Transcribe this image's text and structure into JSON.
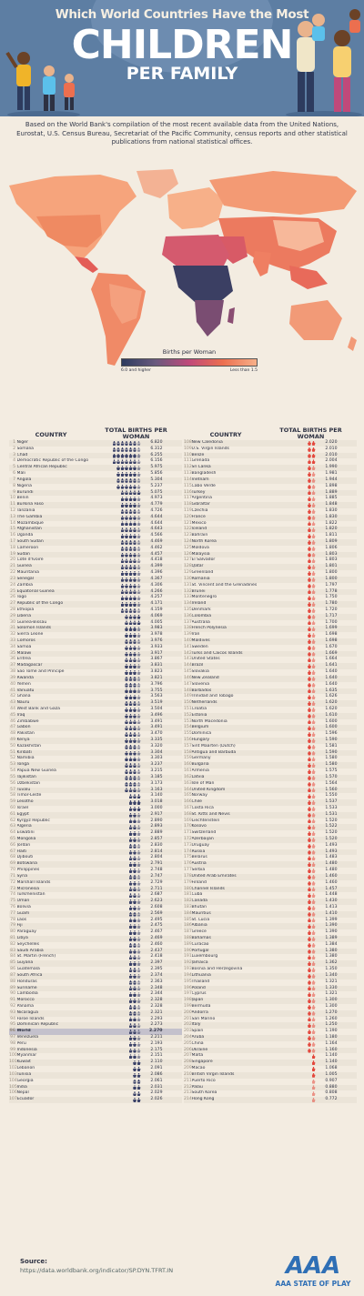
{
  "header": {
    "title_top": "Which World Countries Have the Most",
    "title_main": "CHILDREN",
    "title_sub": "PER FAMILY"
  },
  "description": "Based on the World Bank's compilation of the most recent available data from the United Nations, Eurostat, U.S. Census Bureau, Secretariat of the Pacific Community, census reports and other statistical publications from national statistical offices.",
  "legend": {
    "title": "Births per Woman",
    "high": "6.0 and higher",
    "low": "Less than 1.5"
  },
  "colors": {
    "header": "#5d7ea3",
    "background": "#f3ece1",
    "high": "#2d3b5e",
    "mid": "#c0497a",
    "low": "#f7b089",
    "icon_dark": "#3b4268",
    "icon_red": "#e3483d"
  },
  "table": {
    "col_country": "COUNTRY",
    "col_births": "TOTAL BIRTHS PER WOMAN",
    "left": [
      [
        "1",
        "Niger",
        "6.820"
      ],
      [
        "2",
        "Somalia",
        "6.312"
      ],
      [
        "3",
        "Chad",
        "6.255"
      ],
      [
        "4",
        "Democratic Republic of the Congo",
        "6.156"
      ],
      [
        "5",
        "Central African Republic",
        "5.975"
      ],
      [
        "6",
        "Mali",
        "5.856"
      ],
      [
        "7",
        "Angola",
        "5.304"
      ],
      [
        "8",
        "Nigeria",
        "5.237"
      ],
      [
        "9",
        "Burundi",
        "5.075"
      ],
      [
        "10",
        "Benin",
        "4.973"
      ],
      [
        "11",
        "Burkina Faso",
        "4.779"
      ],
      [
        "12",
        "Tanzania",
        "4.726"
      ],
      [
        "13",
        "The Gambia",
        "4.644"
      ],
      [
        "14",
        "Mozambique",
        "4.644"
      ],
      [
        "15",
        "Afghanistan",
        "4.643"
      ],
      [
        "16",
        "Uganda",
        "4.566"
      ],
      [
        "17",
        "South Sudan",
        "4.469"
      ],
      [
        "18",
        "Cameroon",
        "4.462"
      ],
      [
        "19",
        "Sudan",
        "4.457"
      ],
      [
        "20",
        "Cote d'Ivoire",
        "4.418"
      ],
      [
        "21",
        "Guinea",
        "4.399"
      ],
      [
        "22",
        "Mauritania",
        "4.396"
      ],
      [
        "23",
        "Senegal",
        "4.367"
      ],
      [
        "24",
        "Zambia",
        "4.306"
      ],
      [
        "25",
        "Equatorial Guinea",
        "4.266"
      ],
      [
        "26",
        "Togo",
        "4.257"
      ],
      [
        "27",
        "Republic of the Congo",
        "4.171"
      ],
      [
        "28",
        "Ethiopia",
        "4.159"
      ],
      [
        "29",
        "Liberia",
        "4.069"
      ],
      [
        "30",
        "Guinea-Bissau",
        "4.005"
      ],
      [
        "31",
        "Solomon Islands",
        "3.983"
      ],
      [
        "32",
        "Sierra Leone",
        "3.978"
      ],
      [
        "33",
        "Comoros",
        "3.976"
      ],
      [
        "34",
        "Samoa",
        "3.933"
      ],
      [
        "35",
        "Malawi",
        "3.917"
      ],
      [
        "36",
        "Eritrea",
        "3.867"
      ],
      [
        "37",
        "Madagascar",
        "3.831"
      ],
      [
        "38",
        "Sao Tome and Principe",
        "3.823"
      ],
      [
        "39",
        "Rwanda",
        "3.821"
      ],
      [
        "40",
        "Yemen",
        "3.796"
      ],
      [
        "41",
        "Vanuatu",
        "3.755"
      ],
      [
        "42",
        "Ghana",
        "3.563"
      ],
      [
        "43",
        "Nauru",
        "3.519"
      ],
      [
        "44",
        "West Bank and Gaza",
        "3.504"
      ],
      [
        "45",
        "Iraq",
        "3.496"
      ],
      [
        "46",
        "Zimbabwe",
        "3.491"
      ],
      [
        "47",
        "Gabon",
        "3.491"
      ],
      [
        "48",
        "Pakistan",
        "3.470"
      ],
      [
        "49",
        "Kenya",
        "3.335"
      ],
      [
        "50",
        "Kazakhstan",
        "3.320"
      ],
      [
        "51",
        "Kiribati",
        "3.304"
      ],
      [
        "52",
        "Namibia",
        "3.303"
      ],
      [
        "53",
        "Tonga",
        "3.237"
      ],
      [
        "54",
        "Papua New Guinea",
        "3.215"
      ],
      [
        "55",
        "Tajikistan",
        "3.185"
      ],
      [
        "56",
        "Uzbekistan",
        "3.173"
      ],
      [
        "57",
        "Tuvalu",
        "3.163"
      ],
      [
        "58",
        "Timor-Leste",
        "3.140"
      ],
      [
        "59",
        "Lesotho",
        "3.018"
      ],
      [
        "60",
        "Israel",
        "3.000"
      ],
      [
        "61",
        "Egypt",
        "2.917"
      ],
      [
        "62",
        "Kyrgyz Republic",
        "2.890"
      ],
      [
        "63",
        "Algeria",
        "2.893"
      ],
      [
        "64",
        "Eswatini",
        "2.889"
      ],
      [
        "65",
        "Mongolia",
        "2.857"
      ],
      [
        "66",
        "Jordan",
        "2.830"
      ],
      [
        "67",
        "Haiti",
        "2.814"
      ],
      [
        "68",
        "Djibouti",
        "2.804"
      ],
      [
        "69",
        "Botswana",
        "2.791"
      ],
      [
        "70",
        "Philippines",
        "2.748"
      ],
      [
        "71",
        "Syria",
        "2.747"
      ],
      [
        "72",
        "Marshall Islands",
        "2.729"
      ],
      [
        "73",
        "Micronesia",
        "2.711"
      ],
      [
        "74",
        "Turkmenistan",
        "2.687"
      ],
      [
        "75",
        "Oman",
        "2.623"
      ],
      [
        "76",
        "Bolivia",
        "2.608"
      ],
      [
        "77",
        "Guam",
        "2.569"
      ],
      [
        "78",
        "Laos",
        "2.495"
      ],
      [
        "79",
        "Fiji",
        "2.475"
      ],
      [
        "80",
        "Paraguay",
        "2.467"
      ],
      [
        "81",
        "Libya",
        "2.469"
      ],
      [
        "82",
        "Seychelles",
        "2.460"
      ],
      [
        "83",
        "Saudi Arabia",
        "2.437"
      ],
      [
        "84",
        "St. Martin (French)",
        "2.418"
      ],
      [
        "85",
        "Guyana",
        "2.397"
      ],
      [
        "86",
        "Guatemala",
        "2.395"
      ],
      [
        "87",
        "South Africa",
        "2.374"
      ],
      [
        "88",
        "Honduras",
        "2.363"
      ],
      [
        "89",
        "Suriname",
        "2.348"
      ],
      [
        "90",
        "Cambodia",
        "2.344"
      ],
      [
        "91",
        "Morocco",
        "2.328"
      ],
      [
        "92",
        "Panama",
        "2.328"
      ],
      [
        "93",
        "Nicaragua",
        "2.321"
      ],
      [
        "94",
        "Faroe Islands",
        "2.293"
      ],
      [
        "95",
        "Dominican Republic",
        "2.273"
      ],
      [
        "96",
        "World",
        "2.270"
      ],
      [
        "97",
        "Venezuela",
        "2.211"
      ],
      [
        "98",
        "Peru",
        "2.193"
      ],
      [
        "99",
        "Indonesia",
        "2.175"
      ],
      [
        "100",
        "Myanmar",
        "2.151"
      ],
      [
        "101",
        "Kuwait",
        "2.110"
      ],
      [
        "102",
        "Lebanon",
        "2.091"
      ],
      [
        "103",
        "Tunisia",
        "2.086"
      ],
      [
        "104",
        "Georgia",
        "2.061"
      ],
      [
        "105",
        "India",
        "2.031"
      ],
      [
        "106",
        "Nepal",
        "2.029"
      ],
      [
        "107",
        "Ecuador",
        "2.026"
      ]
    ],
    "right": [
      [
        "108",
        "New Caledonia",
        "2.020"
      ],
      [
        "109",
        "U.S. Virgin Islands",
        "2.010"
      ],
      [
        "110",
        "Belize",
        "2.010"
      ],
      [
        "111",
        "Grenada",
        "2.004"
      ],
      [
        "112",
        "Sri Lanka",
        "1.990"
      ],
      [
        "113",
        "Bangladesh",
        "1.981"
      ],
      [
        "114",
        "Vietnam",
        "1.944"
      ],
      [
        "115",
        "Cabo Verde",
        "1.898"
      ],
      [
        "116",
        "Turkey",
        "1.889"
      ],
      [
        "117",
        "Argentina",
        "1.885"
      ],
      [
        "118",
        "Gibraltar",
        "1.848"
      ],
      [
        "119",
        "Czechia",
        "1.830"
      ],
      [
        "120",
        "France",
        "1.830"
      ],
      [
        "121",
        "Mexico",
        "1.822"
      ],
      [
        "122",
        "Iceland",
        "1.820"
      ],
      [
        "123",
        "Bahrain",
        "1.811"
      ],
      [
        "124",
        "North Korea",
        "1.809"
      ],
      [
        "125",
        "Moldova",
        "1.806"
      ],
      [
        "126",
        "Malaysia",
        "1.803"
      ],
      [
        "127",
        "El Salvador",
        "1.803"
      ],
      [
        "128",
        "Qatar",
        "1.801"
      ],
      [
        "129",
        "Greenland",
        "1.800"
      ],
      [
        "130",
        "Romania",
        "1.800"
      ],
      [
        "131",
        "St. Vincent and the Grenadines",
        "1.797"
      ],
      [
        "132",
        "Brunei",
        "1.778"
      ],
      [
        "133",
        "Montenegro",
        "1.750"
      ],
      [
        "134",
        "Ireland",
        "1.780"
      ],
      [
        "135",
        "Denmark",
        "1.720"
      ],
      [
        "136",
        "Colombia",
        "1.717"
      ],
      [
        "137",
        "Australia",
        "1.700"
      ],
      [
        "138",
        "French Polynesia",
        "1.699"
      ],
      [
        "139",
        "Iran",
        "1.698"
      ],
      [
        "140",
        "Maldives",
        "1.698"
      ],
      [
        "141",
        "Sweden",
        "1.670"
      ],
      [
        "142",
        "Turks and Caicos Islands",
        "1.669"
      ],
      [
        "143",
        "United States",
        "1.664"
      ],
      [
        "144",
        "Brazil",
        "1.641"
      ],
      [
        "145",
        "Slovakia",
        "1.640"
      ],
      [
        "146",
        "New Zealand",
        "1.640"
      ],
      [
        "147",
        "Slovenia",
        "1.640"
      ],
      [
        "148",
        "Barbados",
        "1.635"
      ],
      [
        "149",
        "Trinidad and Tobago",
        "1.626"
      ],
      [
        "150",
        "Netherlands",
        "1.620"
      ],
      [
        "151",
        "Croatia",
        "1.620"
      ],
      [
        "152",
        "Estonia",
        "1.610"
      ],
      [
        "153",
        "North Macedonia",
        "1.600"
      ],
      [
        "154",
        "Belgium",
        "1.600"
      ],
      [
        "155",
        "Dominica",
        "1.596"
      ],
      [
        "156",
        "Hungary",
        "1.590"
      ],
      [
        "157",
        "Sint Maarten (Dutch)",
        "1.581"
      ],
      [
        "158",
        "Antigua and Barbuda",
        "1.590"
      ],
      [
        "159",
        "Germany",
        "1.580"
      ],
      [
        "160",
        "Bulgaria",
        "1.580"
      ],
      [
        "161",
        "Armenia",
        "1.575"
      ],
      [
        "162",
        "Latvia",
        "1.570"
      ],
      [
        "163",
        "Isle of Man",
        "1.564"
      ],
      [
        "164",
        "United Kingdom",
        "1.560"
      ],
      [
        "165",
        "Norway",
        "1.550"
      ],
      [
        "166",
        "Chile",
        "1.537"
      ],
      [
        "167",
        "Costa Rica",
        "1.533"
      ],
      [
        "168",
        "St. Kitts and Nevis",
        "1.531"
      ],
      [
        "169",
        "Liechtenstein",
        "1.520"
      ],
      [
        "170",
        "Kosovo",
        "1.522"
      ],
      [
        "171",
        "Switzerland",
        "1.520"
      ],
      [
        "172",
        "Azerbaijan",
        "1.520"
      ],
      [
        "173",
        "Uruguay",
        "1.493"
      ],
      [
        "174",
        "Russia",
        "1.493"
      ],
      [
        "175",
        "Belarus",
        "1.483"
      ],
      [
        "176",
        "Austria",
        "1.480"
      ],
      [
        "177",
        "Serbia",
        "1.480"
      ],
      [
        "178",
        "United Arab Emirates",
        "1.460"
      ],
      [
        "179",
        "Finland",
        "1.460"
      ],
      [
        "180",
        "Channel Islands",
        "1.457"
      ],
      [
        "181",
        "Cuba",
        "1.448"
      ],
      [
        "182",
        "Canada",
        "1.430"
      ],
      [
        "183",
        "Bhutan",
        "1.413"
      ],
      [
        "184",
        "Mauritius",
        "1.410"
      ],
      [
        "185",
        "St. Lucia",
        "1.399"
      ],
      [
        "186",
        "Albania",
        "1.390"
      ],
      [
        "187",
        "Greece",
        "1.390"
      ],
      [
        "188",
        "Bahamas",
        "1.389"
      ],
      [
        "189",
        "Curacao",
        "1.384"
      ],
      [
        "190",
        "Portugal",
        "1.380"
      ],
      [
        "191",
        "Luxembourg",
        "1.380"
      ],
      [
        "192",
        "Jamaica",
        "1.362"
      ],
      [
        "193",
        "Bosnia and Herzegovina",
        "1.350"
      ],
      [
        "194",
        "Lithuania",
        "1.340"
      ],
      [
        "195",
        "Thailand",
        "1.321"
      ],
      [
        "196",
        "Poland",
        "1.330"
      ],
      [
        "197",
        "Cyprus",
        "1.321"
      ],
      [
        "198",
        "Japan",
        "1.300"
      ],
      [
        "199",
        "Bermuda",
        "1.300"
      ],
      [
        "200",
        "Andorra",
        "1.270"
      ],
      [
        "201",
        "San Marino",
        "1.260"
      ],
      [
        "202",
        "Italy",
        "1.250"
      ],
      [
        "203",
        "Spain",
        "1.190"
      ],
      [
        "204",
        "Aruba",
        "1.180"
      ],
      [
        "205",
        "China",
        "1.164"
      ],
      [
        "206",
        "Ukraine",
        "1.160"
      ],
      [
        "207",
        "Malta",
        "1.140"
      ],
      [
        "208",
        "Singapore",
        "1.140"
      ],
      [
        "209",
        "Macao",
        "1.068"
      ],
      [
        "210",
        "British Virgin Islands",
        "1.005"
      ],
      [
        "211",
        "Puerto Rico",
        "0.907"
      ],
      [
        "212",
        "Palau",
        "0.880"
      ],
      [
        "213",
        "South Korea",
        "0.808"
      ],
      [
        "214",
        "Hong Kong",
        "0.772"
      ]
    ]
  },
  "source": {
    "label": "Source:",
    "url": "https://data.worldbank.org/indicator/SP.DYN.TFRT.IN"
  },
  "logo": {
    "text": "AAA STATE OF PLAY"
  }
}
